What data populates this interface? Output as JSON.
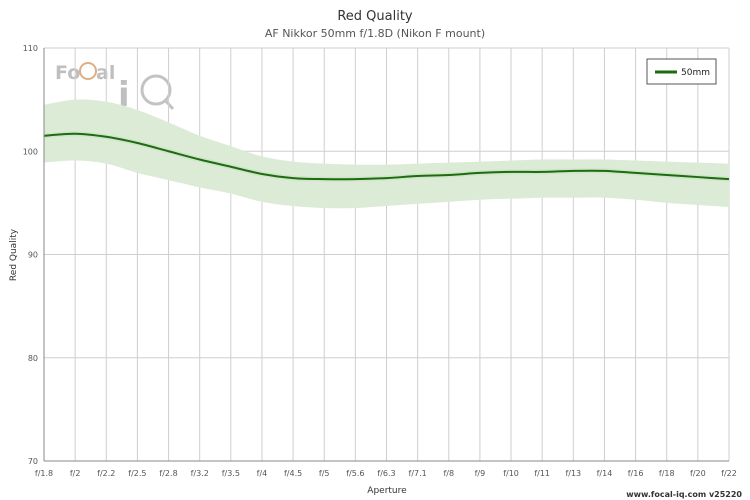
{
  "chart_data": {
    "type": "line",
    "title": "Red Quality",
    "subtitle": "AF Nikkor 50mm f/1.8D (Nikon F mount)",
    "xlabel": "Aperture",
    "ylabel": "Red Quality",
    "ylim": [
      70,
      110
    ],
    "yticks": [
      70,
      80,
      90,
      100,
      110
    ],
    "categories": [
      "f/1.8",
      "f/2",
      "f/2.2",
      "f/2.5",
      "f/2.8",
      "f/3.2",
      "f/3.5",
      "f/4",
      "f/4.5",
      "f/5",
      "f/5.6",
      "f/6.3",
      "f/7.1",
      "f/8",
      "f/9",
      "f/10",
      "f/11",
      "f/13",
      "f/14",
      "f/16",
      "f/18",
      "f/20",
      "f/22"
    ],
    "series": [
      {
        "name": "50mm",
        "color": "#1e6b12",
        "values": [
          101.5,
          101.7,
          101.4,
          100.8,
          100.0,
          99.2,
          98.5,
          97.8,
          97.4,
          97.3,
          97.3,
          97.4,
          97.6,
          97.7,
          97.9,
          98.0,
          98.0,
          98.1,
          98.1,
          97.9,
          97.7,
          97.5,
          97.3
        ],
        "band_upper": [
          104.5,
          105.0,
          104.8,
          104.0,
          102.8,
          101.5,
          100.5,
          99.5,
          99.0,
          98.8,
          98.7,
          98.7,
          98.8,
          98.9,
          99.0,
          99.1,
          99.2,
          99.2,
          99.2,
          99.1,
          99.0,
          98.9,
          98.8
        ],
        "band_lower": [
          98.9,
          99.1,
          98.8,
          97.9,
          97.2,
          96.5,
          95.9,
          95.1,
          94.7,
          94.5,
          94.5,
          94.7,
          94.9,
          95.1,
          95.3,
          95.4,
          95.5,
          95.5,
          95.5,
          95.3,
          95.0,
          94.8,
          94.6
        ],
        "band_color": "#dcebd6"
      }
    ],
    "grid": true,
    "legend_position": "top-right"
  },
  "logo": {
    "text_fo": "Fo",
    "text_cal": "cal",
    "text_iq": "iq"
  },
  "footer": "www.focal-iq.com  v25220",
  "colors": {
    "grid": "#cfcfcf",
    "axis": "#888888"
  }
}
